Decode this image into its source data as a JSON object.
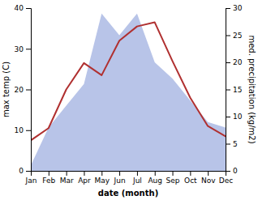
{
  "chart_data": {
    "type": "line",
    "categories": [
      "Jan",
      "Feb",
      "Mar",
      "Apr",
      "May",
      "Jun",
      "Jul",
      "Aug",
      "Sep",
      "Oct",
      "Nov",
      "Dec"
    ],
    "series": [
      {
        "type": "area",
        "axis": "y2",
        "color": "#b8c4e8",
        "values": [
          1.0,
          8.0,
          12.0,
          16.0,
          29.0,
          25.0,
          29.0,
          20.0,
          17.0,
          13.0,
          9.0,
          8.0
        ]
      },
      {
        "type": "line",
        "color": "#b03030",
        "values": [
          7.5,
          10.5,
          20.0,
          26.5,
          23.5,
          32.0,
          35.5,
          36.5,
          27.0,
          18.0,
          11.0,
          8.5
        ]
      }
    ],
    "xlabel": "date (month)",
    "ylabel": "max temp (C)",
    "y2label": "med. precipitation (kg/m2)",
    "ylim": [
      0,
      40
    ],
    "yticks": [
      0,
      10,
      20,
      30,
      40
    ],
    "y2lim": [
      0,
      30
    ],
    "y2ticks": [
      0,
      5,
      10,
      15,
      20,
      25,
      30
    ],
    "grid": false
  }
}
